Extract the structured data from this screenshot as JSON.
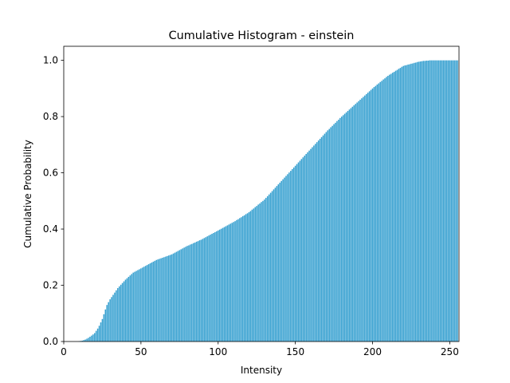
{
  "chart_data": {
    "type": "bar",
    "title": "Cumulative Histogram - einstein",
    "xlabel": "Intensity",
    "ylabel": "Cumulative Probability",
    "color": "#36a0d0",
    "x": [
      0,
      1,
      2,
      3,
      4,
      5,
      6,
      7,
      8,
      9,
      10,
      11,
      12,
      13,
      14,
      15,
      16,
      17,
      18,
      19,
      20,
      21,
      22,
      23,
      24,
      25,
      26,
      27,
      28,
      29,
      30,
      31,
      32,
      33,
      34,
      35,
      36,
      37,
      38,
      39,
      40,
      41,
      42,
      43,
      44,
      45,
      46,
      47,
      48,
      49,
      50,
      51,
      52,
      53,
      54,
      55,
      56,
      57,
      58,
      59,
      60,
      61,
      62,
      63,
      64,
      65,
      66,
      67,
      68,
      69,
      70,
      71,
      72,
      73,
      74,
      75,
      76,
      77,
      78,
      79,
      80,
      81,
      82,
      83,
      84,
      85,
      86,
      87,
      88,
      89,
      90,
      91,
      92,
      93,
      94,
      95,
      96,
      97,
      98,
      99,
      100,
      101,
      102,
      103,
      104,
      105,
      106,
      107,
      108,
      109,
      110,
      111,
      112,
      113,
      114,
      115,
      116,
      117,
      118,
      119,
      120,
      121,
      122,
      123,
      124,
      125,
      126,
      127,
      128,
      129,
      130,
      131,
      132,
      133,
      134,
      135,
      136,
      137,
      138,
      139,
      140,
      141,
      142,
      143,
      144,
      145,
      146,
      147,
      148,
      149,
      150,
      151,
      152,
      153,
      154,
      155,
      156,
      157,
      158,
      159,
      160,
      161,
      162,
      163,
      164,
      165,
      166,
      167,
      168,
      169,
      170,
      171,
      172,
      173,
      174,
      175,
      176,
      177,
      178,
      179,
      180,
      181,
      182,
      183,
      184,
      185,
      186,
      187,
      188,
      189,
      190,
      191,
      192,
      193,
      194,
      195,
      196,
      197,
      198,
      199,
      200,
      201,
      202,
      203,
      204,
      205,
      206,
      207,
      208,
      209,
      210,
      211,
      212,
      213,
      214,
      215,
      216,
      217,
      218,
      219,
      220,
      221,
      222,
      223,
      224,
      225,
      226,
      227,
      228,
      229,
      230,
      231,
      232,
      233,
      234,
      235,
      236,
      237,
      238,
      239,
      240,
      241,
      242,
      243,
      244,
      245,
      246,
      247,
      248,
      249,
      250,
      251,
      252,
      253,
      254,
      255
    ],
    "values": [
      0,
      0,
      0,
      0,
      0,
      0,
      0,
      0,
      0,
      0,
      0.001,
      0.002,
      0.003,
      0.005,
      0.007,
      0.01,
      0.013,
      0.017,
      0.021,
      0.025,
      0.03,
      0.038,
      0.046,
      0.056,
      0.068,
      0.08,
      0.097,
      0.114,
      0.13,
      0.14,
      0.15,
      0.158,
      0.166,
      0.174,
      0.182,
      0.19,
      0.196,
      0.202,
      0.208,
      0.214,
      0.22,
      0.225,
      0.23,
      0.235,
      0.24,
      0.245,
      0.248,
      0.251,
      0.254,
      0.257,
      0.26,
      0.263,
      0.266,
      0.269,
      0.272,
      0.275,
      0.278,
      0.281,
      0.284,
      0.287,
      0.29,
      0.292,
      0.294,
      0.296,
      0.298,
      0.3,
      0.302,
      0.304,
      0.306,
      0.308,
      0.31,
      0.313,
      0.316,
      0.319,
      0.322,
      0.325,
      0.328,
      0.331,
      0.334,
      0.337,
      0.34,
      0.342,
      0.345,
      0.347,
      0.35,
      0.352,
      0.355,
      0.357,
      0.36,
      0.362,
      0.365,
      0.368,
      0.371,
      0.374,
      0.377,
      0.38,
      0.383,
      0.386,
      0.389,
      0.392,
      0.395,
      0.398,
      0.401,
      0.404,
      0.407,
      0.41,
      0.413,
      0.416,
      0.419,
      0.422,
      0.425,
      0.428,
      0.432,
      0.435,
      0.439,
      0.442,
      0.446,
      0.449,
      0.453,
      0.456,
      0.46,
      0.464,
      0.469,
      0.473,
      0.478,
      0.482,
      0.487,
      0.491,
      0.496,
      0.5,
      0.505,
      0.511,
      0.517,
      0.523,
      0.529,
      0.535,
      0.541,
      0.547,
      0.553,
      0.559,
      0.565,
      0.571,
      0.577,
      0.583,
      0.589,
      0.595,
      0.601,
      0.607,
      0.613,
      0.619,
      0.625,
      0.631,
      0.637,
      0.643,
      0.649,
      0.655,
      0.661,
      0.667,
      0.673,
      0.679,
      0.685,
      0.691,
      0.697,
      0.703,
      0.709,
      0.715,
      0.721,
      0.727,
      0.733,
      0.739,
      0.745,
      0.751,
      0.756,
      0.762,
      0.767,
      0.773,
      0.778,
      0.784,
      0.789,
      0.795,
      0.8,
      0.805,
      0.81,
      0.815,
      0.82,
      0.825,
      0.83,
      0.835,
      0.84,
      0.845,
      0.85,
      0.855,
      0.86,
      0.865,
      0.87,
      0.875,
      0.88,
      0.885,
      0.89,
      0.895,
      0.9,
      0.905,
      0.909,
      0.914,
      0.918,
      0.923,
      0.927,
      0.932,
      0.936,
      0.941,
      0.945,
      0.949,
      0.952,
      0.956,
      0.959,
      0.963,
      0.966,
      0.97,
      0.973,
      0.977,
      0.98,
      0.982,
      0.983,
      0.985,
      0.986,
      0.988,
      0.989,
      0.991,
      0.992,
      0.994,
      0.995,
      0.996,
      0.997,
      0.998,
      0.998,
      0.999,
      0.999,
      1,
      1,
      1,
      1,
      1,
      1,
      1,
      1,
      1,
      1,
      1,
      1,
      1,
      1,
      1,
      1,
      1,
      1,
      1
    ],
    "xlim": [
      0,
      256
    ],
    "xticks": [
      0,
      50,
      100,
      150,
      200,
      250
    ],
    "ylim": [
      0,
      1.05
    ],
    "yticks": [
      {
        "value": 0,
        "label": "0.0"
      },
      0.2,
      0.4,
      0.6,
      0.8,
      {
        "value": 1,
        "label": "1.0"
      }
    ]
  }
}
